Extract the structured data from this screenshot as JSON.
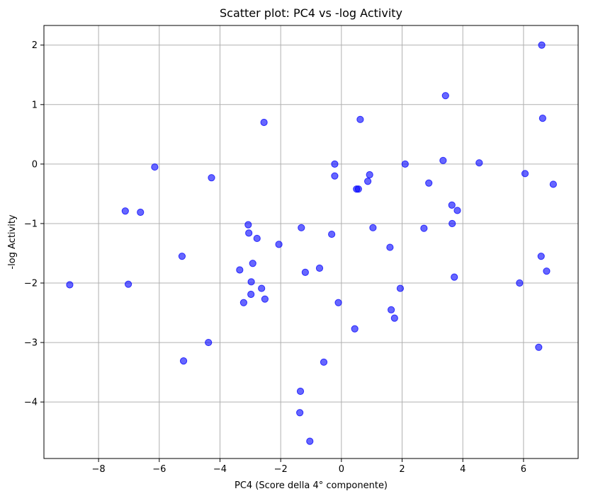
{
  "chart_data": {
    "type": "scatter",
    "title": "Scatter plot: PC4 vs -log Activity",
    "xlabel": "PC4 (Score della 4° componente)",
    "ylabel": "-log Activity",
    "xlim": [
      -9.8,
      7.8
    ],
    "ylim": [
      -4.95,
      2.33
    ],
    "xticks": [
      -8,
      -6,
      -4,
      -2,
      0,
      2,
      4,
      6
    ],
    "yticks": [
      -4,
      -3,
      -2,
      -1,
      0,
      1,
      2
    ],
    "grid": true,
    "color": "#0000ff",
    "points": [
      {
        "x": -8.95,
        "y": -2.03
      },
      {
        "x": -7.12,
        "y": -0.79
      },
      {
        "x": -7.02,
        "y": -2.02
      },
      {
        "x": -6.62,
        "y": -0.81
      },
      {
        "x": -6.15,
        "y": -0.05
      },
      {
        "x": -5.25,
        "y": -1.55
      },
      {
        "x": -5.2,
        "y": -3.31
      },
      {
        "x": -4.38,
        "y": -3.0
      },
      {
        "x": -4.28,
        "y": -0.23
      },
      {
        "x": -3.35,
        "y": -1.78
      },
      {
        "x": -3.22,
        "y": -2.33
      },
      {
        "x": -3.07,
        "y": -1.02
      },
      {
        "x": -3.05,
        "y": -1.16
      },
      {
        "x": -2.98,
        "y": -2.19
      },
      {
        "x": -2.97,
        "y": -1.98
      },
      {
        "x": -2.92,
        "y": -1.67
      },
      {
        "x": -2.78,
        "y": -1.25
      },
      {
        "x": -2.63,
        "y": -2.09
      },
      {
        "x": -2.55,
        "y": 0.7
      },
      {
        "x": -2.52,
        "y": -2.27
      },
      {
        "x": -2.06,
        "y": -1.35
      },
      {
        "x": -1.35,
        "y": -3.82
      },
      {
        "x": -1.37,
        "y": -4.18
      },
      {
        "x": -1.32,
        "y": -1.07
      },
      {
        "x": -1.19,
        "y": -1.82
      },
      {
        "x": -1.04,
        "y": -4.66
      },
      {
        "x": -0.72,
        "y": -1.75
      },
      {
        "x": -0.58,
        "y": -3.33
      },
      {
        "x": -0.32,
        "y": -1.18
      },
      {
        "x": -0.22,
        "y": 0.0
      },
      {
        "x": -0.22,
        "y": -0.2
      },
      {
        "x": -0.1,
        "y": -2.33
      },
      {
        "x": 0.44,
        "y": -2.77
      },
      {
        "x": 0.5,
        "y": -0.42
      },
      {
        "x": 0.56,
        "y": -0.42
      },
      {
        "x": 0.62,
        "y": 0.75
      },
      {
        "x": 0.87,
        "y": -0.29
      },
      {
        "x": 0.93,
        "y": -0.18
      },
      {
        "x": 1.04,
        "y": -1.07
      },
      {
        "x": 1.6,
        "y": -1.4
      },
      {
        "x": 1.64,
        "y": -2.45
      },
      {
        "x": 1.75,
        "y": -2.59
      },
      {
        "x": 1.94,
        "y": -2.09
      },
      {
        "x": 2.1,
        "y": 0.0
      },
      {
        "x": 2.72,
        "y": -1.08
      },
      {
        "x": 2.88,
        "y": -0.32
      },
      {
        "x": 3.35,
        "y": 0.06
      },
      {
        "x": 3.43,
        "y": 1.15
      },
      {
        "x": 3.64,
        "y": -0.69
      },
      {
        "x": 3.65,
        "y": -1.0
      },
      {
        "x": 3.72,
        "y": -1.9
      },
      {
        "x": 3.82,
        "y": -0.78
      },
      {
        "x": 4.54,
        "y": 0.02
      },
      {
        "x": 5.87,
        "y": -2.0
      },
      {
        "x": 6.05,
        "y": -0.16
      },
      {
        "x": 6.5,
        "y": -3.08
      },
      {
        "x": 6.58,
        "y": -1.55
      },
      {
        "x": 6.6,
        "y": 2.0
      },
      {
        "x": 6.63,
        "y": 0.77
      },
      {
        "x": 6.76,
        "y": -1.8
      },
      {
        "x": 6.98,
        "y": -0.34
      }
    ]
  }
}
